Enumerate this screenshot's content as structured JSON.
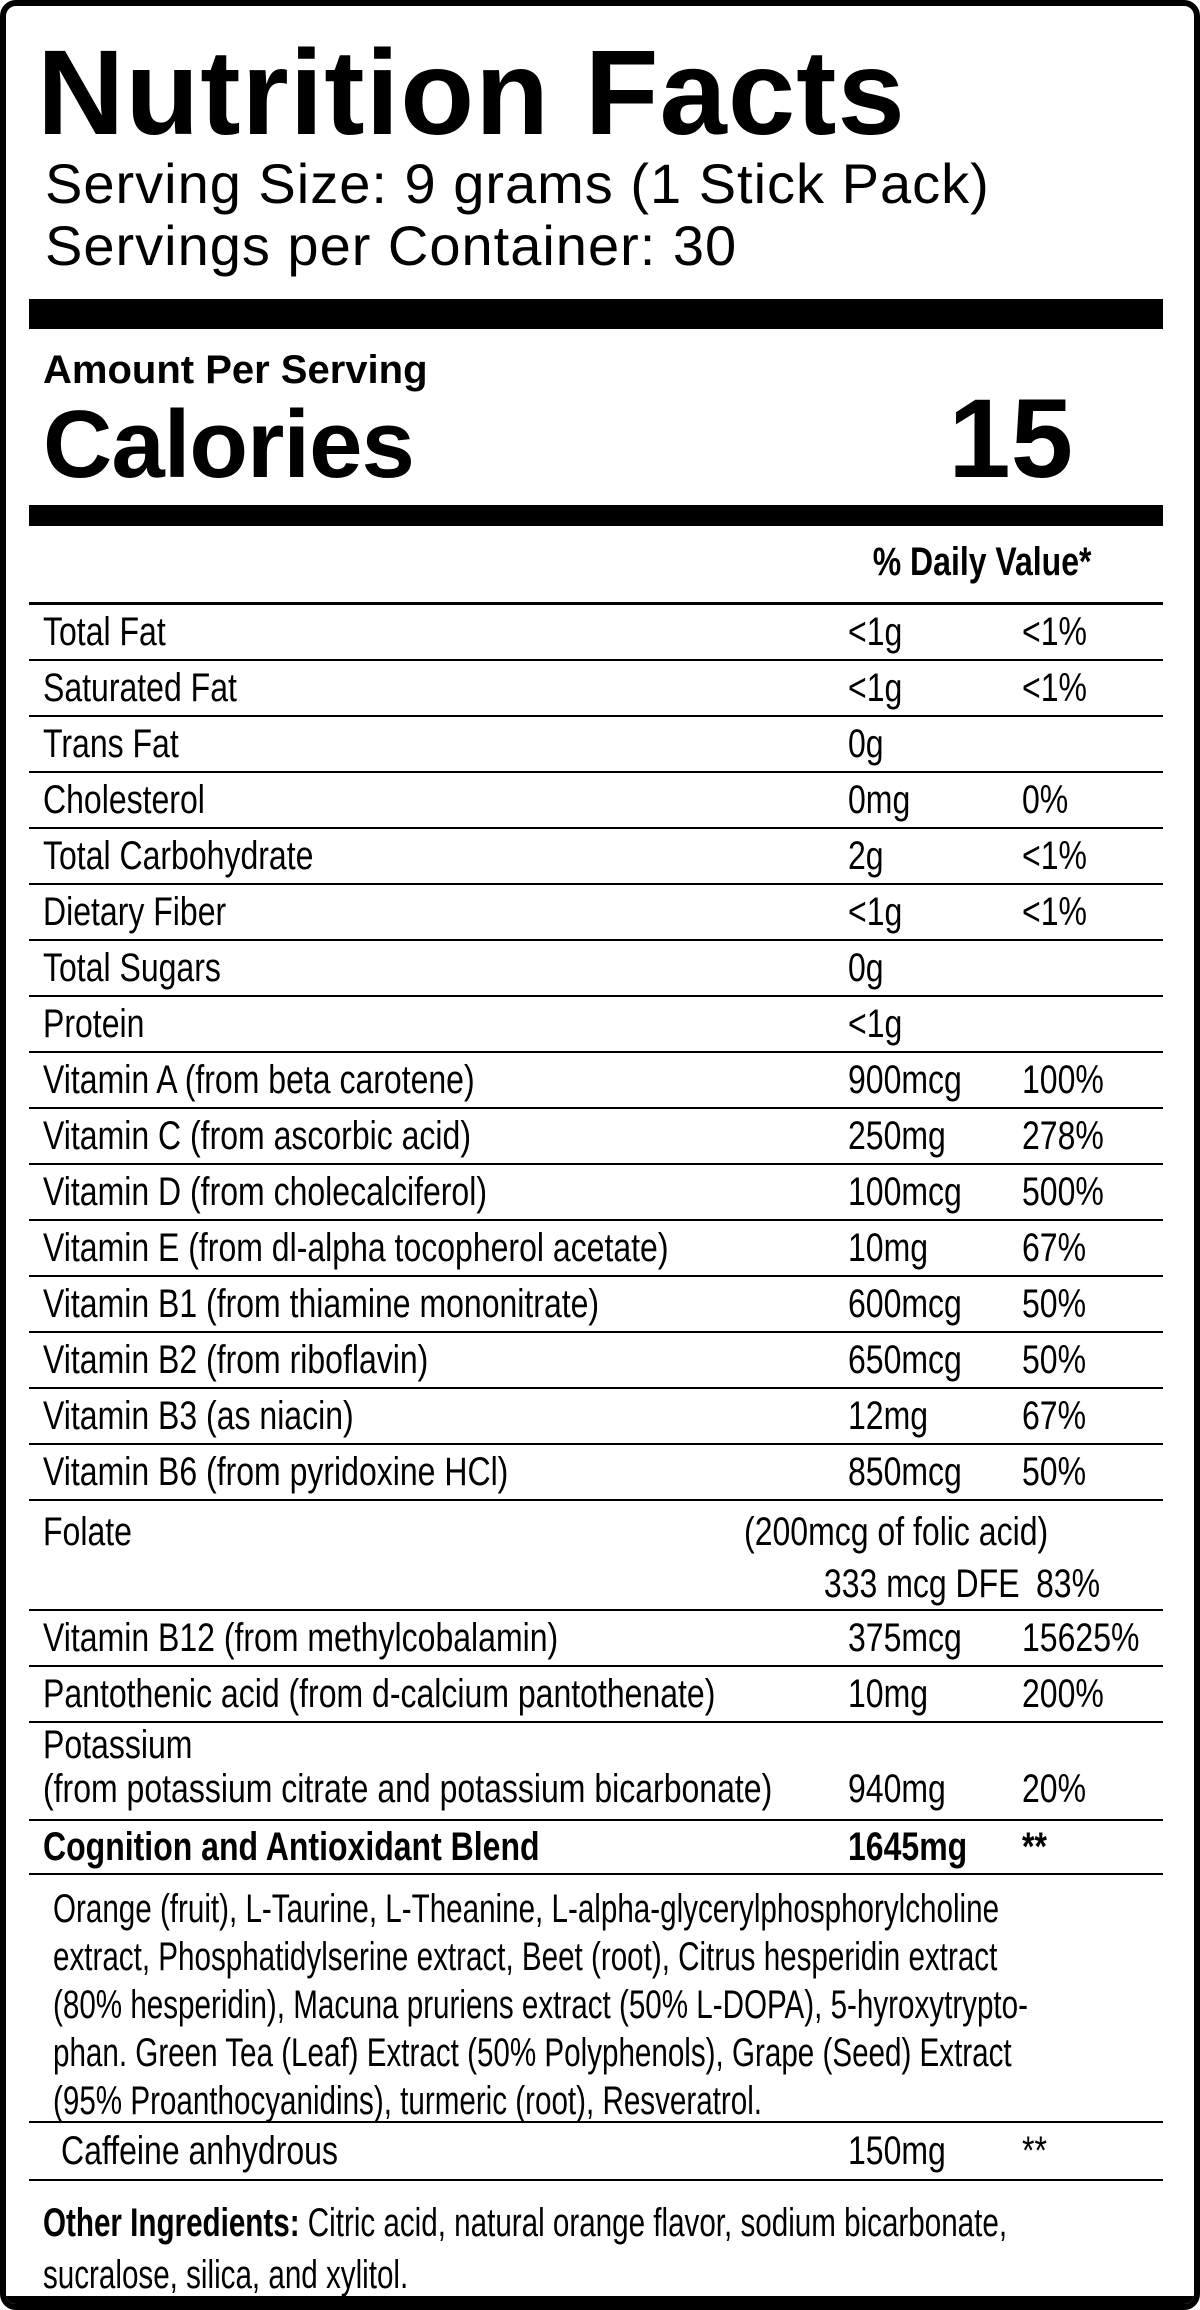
{
  "label": {
    "title": "Nutrition Facts",
    "serving_size": "Serving Size: 9 grams (1 Stick Pack)",
    "servings_per_container": "Servings per Container: 30",
    "amount_per_serving": "Amount Per Serving",
    "calories_label": "Calories",
    "calories_value": "15",
    "daily_value_header": "% Daily Value*",
    "colors": {
      "ink": "#000000",
      "paper": "#ffffff"
    },
    "rows": [
      {
        "label": "Total Fat",
        "amount": "<1g",
        "dv": "<1%"
      },
      {
        "label": "Saturated Fat",
        "amount": "<1g",
        "dv": "<1%"
      },
      {
        "label": "Trans Fat",
        "amount": "0g",
        "dv": ""
      },
      {
        "label": "Cholesterol",
        "amount": "0mg",
        "dv": "0%"
      },
      {
        "label": "Total Carbohydrate",
        "amount": "2g",
        "dv": "<1%"
      },
      {
        "label": "Dietary Fiber",
        "amount": "<1g",
        "dv": "<1%"
      },
      {
        "label": "Total Sugars",
        "amount": "0g",
        "dv": ""
      },
      {
        "label": "Protein",
        "amount": "<1g",
        "dv": ""
      },
      {
        "label": "Vitamin A (from beta carotene)",
        "amount": "900mcg",
        "dv": "100%"
      },
      {
        "label": "Vitamin C (from ascorbic acid)",
        "amount": "250mg",
        "dv": "278%"
      },
      {
        "label": "Vitamin D (from cholecalciferol)",
        "amount": "100mcg",
        "dv": "500%"
      },
      {
        "label": "Vitamin E (from dl-alpha tocopherol acetate)",
        "amount": "10mg",
        "dv": "67%"
      },
      {
        "label": "Vitamin B1 (from thiamine mononitrate)",
        "amount": "600mcg",
        "dv": "50%"
      },
      {
        "label": "Vitamin B2 (from riboflavin)",
        "amount": "650mcg",
        "dv": "50%"
      },
      {
        "label": "Vitamin B3 (as niacin)",
        "amount": "12mg",
        "dv": "67%"
      },
      {
        "label": "Vitamin B6 (from pyridoxine HCl)",
        "amount": "850mcg",
        "dv": "50%"
      },
      {
        "type": "folate",
        "label": "Folate",
        "note": "(200mcg of folic acid)",
        "amount": "333 mcg DFE",
        "dv": "83%"
      },
      {
        "label": "Vitamin B12 (from methylcobalamin)",
        "amount": "375mcg",
        "dv": "15625%"
      },
      {
        "label": "Pantothenic acid (from d-calcium pantothenate)",
        "amount": "10mg",
        "dv": "200%"
      },
      {
        "type": "double",
        "label": "Potassium",
        "label2": "(from potassium citrate and potassium bicarbonate)",
        "amount": "940mg",
        "dv": "20%"
      },
      {
        "type": "bold",
        "label": "Cognition and Antioxidant Blend",
        "amount": "1645mg",
        "dv": "**"
      },
      {
        "type": "paragraph",
        "text": "Orange (fruit), L-Taurine, L-Theanine, L-alpha-glycerylphosphorylcholine\nextract, Phosphatidylserine extract, Beet (root), Citrus hesperidin extract\n(80% hesperidin), Macuna pruriens extract (50% L-DOPA), 5-hyroxytrypto-\nphan. Green Tea (Leaf) Extract (50% Polyphenols), Grape (Seed) Extract\n(95% Proanthocyanidins), turmeric (root), Resveratrol."
      },
      {
        "type": "indent",
        "label": "Caffeine anhydrous",
        "amount": "150mg",
        "dv": "**"
      },
      {
        "type": "other",
        "lead": "Other Ingredients:",
        "text": " Citric acid, natural orange flavor, sodium bicarbonate,\nsucralose, silica, and xylitol."
      }
    ]
  }
}
